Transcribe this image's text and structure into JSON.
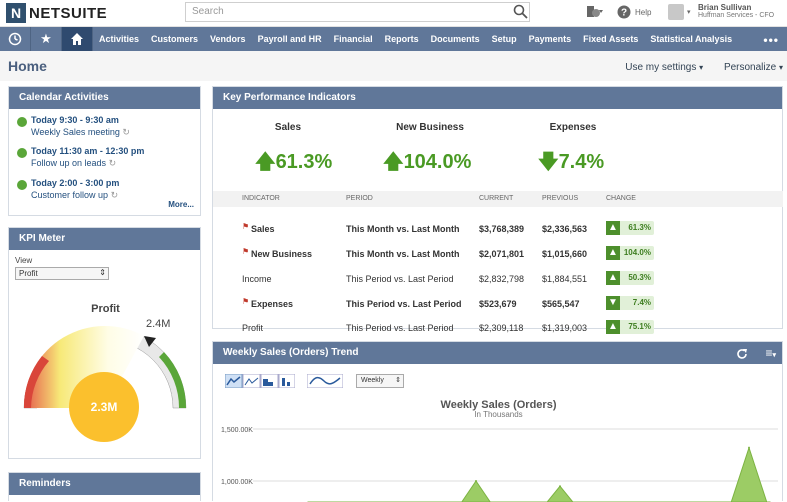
{
  "topbar": {
    "logo_mark": "N",
    "logo_text": "NETSUITE",
    "search_placeholder": "Search",
    "help_label": "Help",
    "user_name": "Brian Sullivan",
    "user_company": "Huffman Services - CFO"
  },
  "nav": {
    "items": [
      "Activities",
      "Customers",
      "Vendors",
      "Payroll and HR",
      "Financial",
      "Reports",
      "Documents",
      "Setup",
      "Payments",
      "Fixed Assets",
      "Statistical Analysis"
    ],
    "more": "•••"
  },
  "page": {
    "title": "Home",
    "use_settings": "Use my settings",
    "personalize": "Personalize"
  },
  "calendar": {
    "title": "Calendar Activities",
    "items": [
      {
        "time": "Today 9:30 - 9:30 am",
        "desc": "Weekly Sales meeting"
      },
      {
        "time": "Today 11:30 am - 12:30 pm",
        "desc": "Follow up on leads"
      },
      {
        "time": "Today 2:00 - 3:00 pm",
        "desc": "Customer follow up"
      }
    ],
    "more": "More..."
  },
  "kpi_meter": {
    "title": "KPI Meter",
    "view_label": "View",
    "view_value": "Profit",
    "gauge_title": "Profit",
    "gauge_value": "2.3M",
    "gauge_max": "2.4M",
    "gauge_fraction": 0.95
  },
  "reminders": {
    "title": "Reminders"
  },
  "kpi": {
    "title": "Key Performance Indicators",
    "headline": [
      {
        "label": "Sales",
        "value": "61.3%",
        "dir": "up"
      },
      {
        "label": "New Business",
        "value": "104.0%",
        "dir": "up"
      },
      {
        "label": "Expenses",
        "value": "7.4%",
        "dir": "down"
      }
    ],
    "columns": {
      "indicator": "INDICATOR",
      "period": "PERIOD",
      "current": "CURRENT",
      "previous": "PREVIOUS",
      "change": "CHANGE"
    },
    "rows": [
      {
        "indicator": "Sales",
        "period": "This Month vs. Last Month",
        "current": "$3,768,389",
        "previous": "$2,336,563",
        "change": "61.3%",
        "dir": "up",
        "bold": true,
        "flag": true
      },
      {
        "indicator": "New Business",
        "period": "This Month vs. Last Month",
        "current": "$2,071,801",
        "previous": "$1,015,660",
        "change": "104.0%",
        "dir": "up",
        "bold": true,
        "flag": true
      },
      {
        "indicator": "Income",
        "period": "This Period vs. Last Period",
        "current": "$2,832,798",
        "previous": "$1,884,551",
        "change": "50.3%",
        "dir": "up",
        "bold": false,
        "flag": false
      },
      {
        "indicator": "Expenses",
        "period": "This Period vs. Last Period",
        "current": "$523,679",
        "previous": "$565,547",
        "change": "7.4%",
        "dir": "down",
        "bold": true,
        "flag": true
      },
      {
        "indicator": "Profit",
        "period": "This Period vs. Last Period",
        "current": "$2,309,118",
        "previous": "$1,319,003",
        "change": "75.1%",
        "dir": "up",
        "bold": false,
        "flag": false
      }
    ]
  },
  "trend": {
    "title": "Weekly Sales (Orders) Trend",
    "period_select": "Weekly",
    "menu_icon": "≡"
  },
  "chart_data": {
    "type": "area",
    "title": "Weekly Sales (Orders)",
    "subtitle": "In Thousands",
    "ytick_labels": [
      "1,500.00K",
      "1,000.00K"
    ],
    "ylim": [
      700,
      1500
    ],
    "x": [
      0,
      1,
      2,
      3,
      4,
      5,
      6,
      7,
      8,
      9,
      10,
      11,
      12,
      13,
      14,
      15,
      16,
      17,
      18,
      19,
      20,
      21,
      22
    ],
    "values": [
      700,
      700,
      700,
      700,
      700,
      700,
      700,
      700,
      1000,
      700,
      700,
      700,
      950,
      700,
      700,
      700,
      700,
      700,
      700,
      700,
      700,
      1320,
      700
    ],
    "grid": true,
    "fill": "#9ccc65"
  },
  "colors": {
    "nav": "#607799",
    "accent": "#4a9a24",
    "portlet_header": "#607799"
  }
}
